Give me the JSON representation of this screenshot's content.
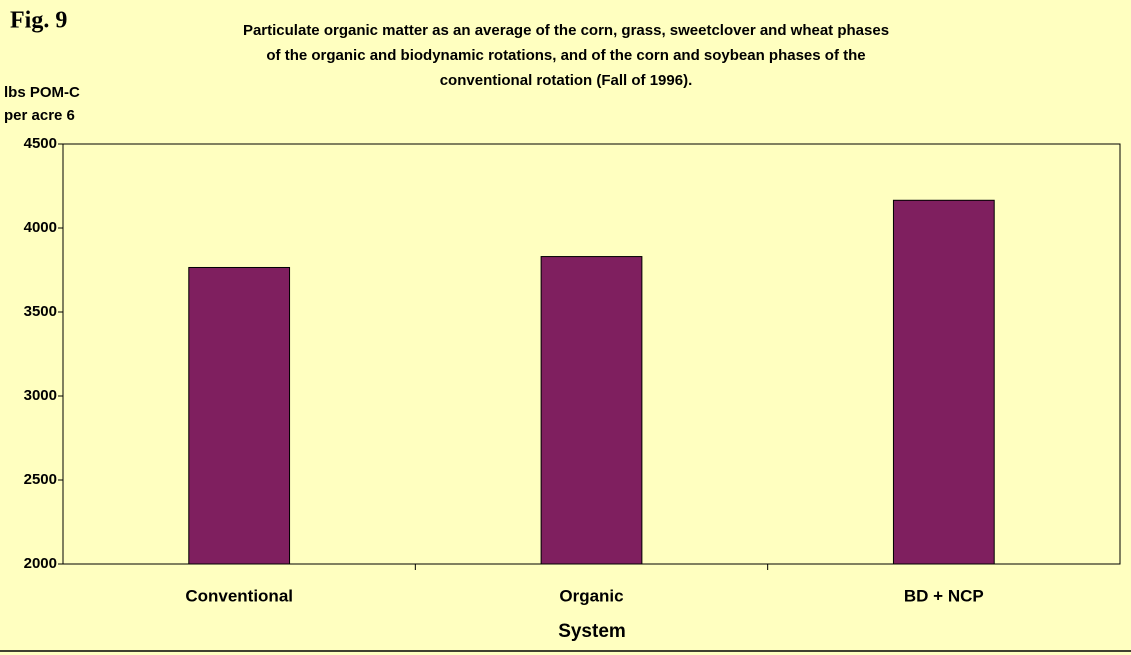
{
  "chart_data": {
    "type": "bar",
    "figure_label": "Fig. 9",
    "title": [
      "Particulate organic matter as an average of the corn, grass, sweetclover and wheat phases",
      "of the organic and biodynamic rotations, and of the corn and soybean phases of the",
      "conventional rotation (Fall of 1996)."
    ],
    "ylabel": [
      "lbs POM-C",
      "per acre 6"
    ],
    "xlabel": "System",
    "categories": [
      "Conventional",
      "Organic",
      "BD + NCP"
    ],
    "values": [
      3765,
      3830,
      4165
    ],
    "color": "#7f1f5f",
    "ylim": [
      2000,
      4500
    ],
    "yticks": [
      2000,
      2500,
      3000,
      3500,
      4000,
      4500
    ],
    "grid": false
  }
}
